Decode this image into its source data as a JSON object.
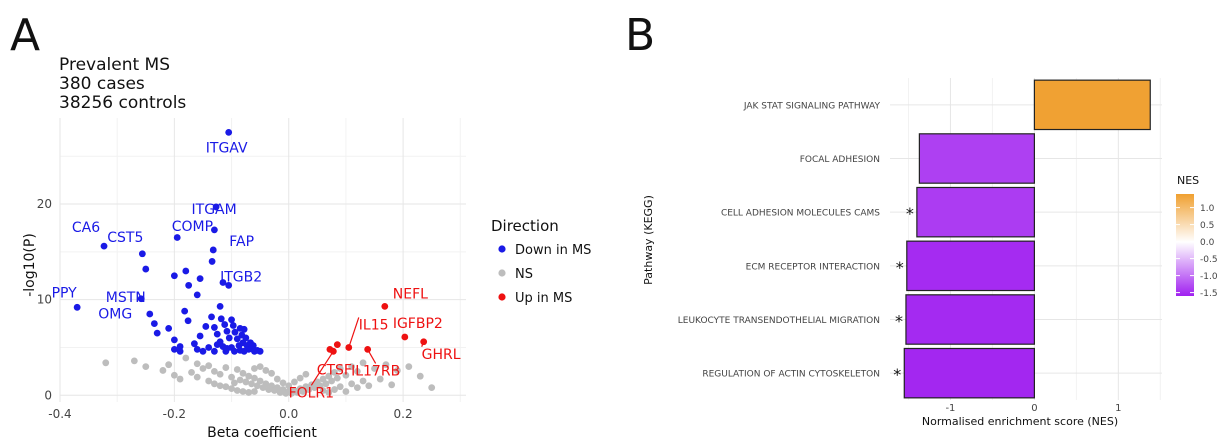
{
  "chart_data": [
    {
      "type": "scatter",
      "panel_label": "A",
      "title_lines": [
        "Prevalent MS",
        "380 cases",
        "38256 controls"
      ],
      "xlabel": "Beta coefficient",
      "ylabel": "-log10(P)",
      "xlim": [
        -0.4,
        0.31
      ],
      "ylim": [
        -0.7,
        29
      ],
      "xticks": [
        -0.4,
        -0.2,
        0.0,
        0.2
      ],
      "xtick_labels": [
        "-0.4",
        "-0.2",
        "0.0",
        "0.2"
      ],
      "yticks": [
        0,
        10,
        20
      ],
      "ytick_labels": [
        "0",
        "10",
        "20"
      ],
      "grid": true,
      "legend": {
        "title": "Direction",
        "position": "right",
        "entries": [
          {
            "label": "Down in MS",
            "color": "#1a1ae6"
          },
          {
            "label": "NS",
            "color": "#bdbdbd"
          },
          {
            "label": "Up in MS",
            "color": "#ee1111"
          }
        ]
      },
      "series": [
        {
          "name": "Down in MS",
          "color": "#1a1ae6",
          "points": [
            [
              -0.105,
              27.5
            ],
            [
              -0.127,
              19.7
            ],
            [
              -0.13,
              17.3
            ],
            [
              -0.132,
              15.2
            ],
            [
              -0.134,
              14.0
            ],
            [
              -0.323,
              15.6
            ],
            [
              -0.256,
              14.8
            ],
            [
              -0.25,
              13.2
            ],
            [
              -0.258,
              10.1
            ],
            [
              -0.37,
              9.2
            ],
            [
              -0.195,
              16.5
            ],
            [
              -0.2,
              12.5
            ],
            [
              -0.18,
              13.0
            ],
            [
              -0.175,
              11.5
            ],
            [
              -0.16,
              10.5
            ],
            [
              -0.155,
              12.2
            ],
            [
              -0.115,
              11.8
            ],
            [
              -0.105,
              11.5
            ],
            [
              -0.12,
              9.3
            ],
            [
              -0.182,
              8.8
            ],
            [
              -0.176,
              7.8
            ],
            [
              -0.243,
              8.5
            ],
            [
              -0.235,
              7.5
            ],
            [
              -0.23,
              6.5
            ],
            [
              -0.21,
              7.0
            ],
            [
              -0.2,
              5.8
            ],
            [
              -0.19,
              5.1
            ],
            [
              -0.165,
              5.4
            ],
            [
              -0.155,
              6.2
            ],
            [
              -0.145,
              7.2
            ],
            [
              -0.135,
              8.2
            ],
            [
              -0.13,
              7.1
            ],
            [
              -0.125,
              6.4
            ],
            [
              -0.12,
              5.6
            ],
            [
              -0.118,
              8.0
            ],
            [
              -0.112,
              7.4
            ],
            [
              -0.108,
              6.7
            ],
            [
              -0.104,
              6.0
            ],
            [
              -0.1,
              7.9
            ],
            [
              -0.097,
              7.3
            ],
            [
              -0.094,
              6.6
            ],
            [
              -0.09,
              5.9
            ],
            [
              -0.087,
              5.2
            ],
            [
              -0.085,
              7.0
            ],
            [
              -0.082,
              6.3
            ],
            [
              -0.08,
              5.5
            ],
            [
              -0.078,
              6.9
            ],
            [
              -0.075,
              6.0
            ],
            [
              -0.073,
              5.2
            ],
            [
              -0.07,
              4.8
            ],
            [
              -0.067,
              5.5
            ],
            [
              -0.065,
              4.9
            ],
            [
              -0.062,
              5.2
            ],
            [
              -0.06,
              4.6
            ],
            [
              -0.14,
              5.0
            ],
            [
              -0.15,
              4.6
            ],
            [
              -0.16,
              4.8
            ],
            [
              -0.19,
              4.6
            ],
            [
              -0.2,
              4.8
            ],
            [
              -0.11,
              4.6
            ],
            [
              -0.1,
              5.0
            ],
            [
              -0.095,
              4.6
            ],
            [
              -0.13,
              4.6
            ],
            [
              -0.125,
              5.3
            ],
            [
              -0.115,
              5.1
            ],
            [
              -0.108,
              4.9
            ],
            [
              -0.085,
              4.7
            ],
            [
              -0.078,
              4.6
            ],
            [
              -0.055,
              4.7
            ],
            [
              -0.05,
              4.6
            ]
          ]
        },
        {
          "name": "NS",
          "color": "#bdbdbd",
          "points": [
            [
              -0.32,
              3.4
            ],
            [
              -0.27,
              3.6
            ],
            [
              -0.25,
              3.0
            ],
            [
              -0.21,
              3.2
            ],
            [
              -0.18,
              3.9
            ],
            [
              -0.16,
              3.3
            ],
            [
              -0.15,
              2.8
            ],
            [
              -0.14,
              3.1
            ],
            [
              -0.13,
              2.5
            ],
            [
              -0.12,
              2.2
            ],
            [
              -0.11,
              2.9
            ],
            [
              -0.1,
              1.9
            ],
            [
              -0.09,
              2.7
            ],
            [
              -0.085,
              1.6
            ],
            [
              -0.08,
              2.3
            ],
            [
              -0.075,
              1.4
            ],
            [
              -0.07,
              2.0
            ],
            [
              -0.065,
              1.2
            ],
            [
              -0.06,
              1.8
            ],
            [
              -0.055,
              1.0
            ],
            [
              -0.05,
              1.5
            ],
            [
              -0.045,
              0.8
            ],
            [
              -0.04,
              1.2
            ],
            [
              -0.035,
              0.6
            ],
            [
              -0.03,
              1.0
            ],
            [
              -0.025,
              0.5
            ],
            [
              -0.02,
              0.8
            ],
            [
              -0.015,
              0.3
            ],
            [
              -0.01,
              0.6
            ],
            [
              -0.005,
              0.2
            ],
            [
              0.0,
              0.4
            ],
            [
              0.005,
              0.2
            ],
            [
              0.01,
              0.5
            ],
            [
              0.015,
              0.3
            ],
            [
              0.02,
              0.7
            ],
            [
              0.025,
              0.4
            ],
            [
              0.03,
              0.9
            ],
            [
              0.035,
              0.6
            ],
            [
              0.04,
              1.1
            ],
            [
              0.045,
              0.8
            ],
            [
              0.05,
              1.4
            ],
            [
              0.055,
              1.0
            ],
            [
              0.06,
              1.7
            ],
            [
              0.065,
              1.2
            ],
            [
              0.07,
              2.0
            ],
            [
              0.075,
              1.5
            ],
            [
              0.08,
              2.4
            ],
            [
              0.085,
              1.8
            ],
            [
              0.09,
              2.8
            ],
            [
              0.1,
              2.1
            ],
            [
              0.11,
              3.0
            ],
            [
              0.12,
              2.5
            ],
            [
              0.13,
              3.4
            ],
            [
              0.15,
              2.8
            ],
            [
              0.17,
              3.2
            ],
            [
              0.19,
              2.6
            ],
            [
              0.21,
              3.0
            ],
            [
              0.23,
              2.0
            ],
            [
              0.25,
              0.8
            ],
            [
              -0.22,
              2.6
            ],
            [
              -0.2,
              2.1
            ],
            [
              -0.19,
              1.7
            ],
            [
              -0.17,
              2.4
            ],
            [
              -0.16,
              1.9
            ],
            [
              -0.14,
              1.5
            ],
            [
              -0.13,
              1.2
            ],
            [
              -0.12,
              1.0
            ],
            [
              -0.11,
              0.9
            ],
            [
              -0.1,
              0.7
            ],
            [
              -0.095,
              1.3
            ],
            [
              -0.09,
              0.5
            ],
            [
              -0.08,
              0.4
            ],
            [
              -0.07,
              0.3
            ],
            [
              -0.06,
              0.4
            ],
            [
              0.06,
              0.5
            ],
            [
              0.07,
              0.3
            ],
            [
              0.08,
              0.6
            ],
            [
              0.09,
              0.9
            ],
            [
              0.1,
              0.4
            ],
            [
              0.11,
              1.2
            ],
            [
              0.12,
              0.8
            ],
            [
              0.13,
              1.5
            ],
            [
              0.14,
              1.0
            ],
            [
              0.16,
              1.7
            ],
            [
              0.18,
              1.1
            ],
            [
              -0.03,
              2.3
            ],
            [
              -0.02,
              1.7
            ],
            [
              -0.01,
              1.3
            ],
            [
              0.0,
              1.0
            ],
            [
              0.01,
              1.4
            ],
            [
              0.02,
              1.8
            ],
            [
              -0.04,
              2.6
            ],
            [
              -0.05,
              3.0
            ],
            [
              -0.06,
              2.8
            ],
            [
              0.03,
              2.2
            ]
          ]
        },
        {
          "name": "Up in MS",
          "color": "#ee1111",
          "points": [
            [
              0.168,
              9.3
            ],
            [
              0.203,
              6.1
            ],
            [
              0.236,
              5.6
            ],
            [
              0.105,
              5.0
            ],
            [
              0.078,
              4.6
            ],
            [
              0.072,
              4.8
            ],
            [
              0.085,
              5.3
            ],
            [
              0.138,
              4.8
            ]
          ]
        }
      ],
      "labels": [
        {
          "text": "ITGAV",
          "x": -0.105,
          "y": 27.5,
          "color": "#1a1ae6"
        },
        {
          "text": "ITGAM",
          "x": -0.127,
          "y": 19.7,
          "color": "#1a1ae6"
        },
        {
          "text": "COMP",
          "x": -0.13,
          "y": 17.3,
          "color": "#1a1ae6"
        },
        {
          "text": "FAP",
          "x": -0.132,
          "y": 15.2,
          "color": "#1a1ae6"
        },
        {
          "text": "CA6",
          "x": -0.323,
          "y": 15.6,
          "color": "#1a1ae6"
        },
        {
          "text": "CST5",
          "x": -0.256,
          "y": 14.8,
          "color": "#1a1ae6"
        },
        {
          "text": "ITGB2",
          "x": -0.134,
          "y": 14.0,
          "color": "#1a1ae6"
        },
        {
          "text": "MSTN",
          "x": -0.25,
          "y": 13.2,
          "color": "#1a1ae6"
        },
        {
          "text": "PPY",
          "x": -0.37,
          "y": 9.2,
          "color": "#1a1ae6"
        },
        {
          "text": "OMG",
          "x": -0.258,
          "y": 10.1,
          "color": "#1a1ae6"
        },
        {
          "text": "NEFL",
          "x": 0.168,
          "y": 9.3,
          "color": "#ee1111"
        },
        {
          "text": "IGFBP2",
          "x": 0.203,
          "y": 6.1,
          "color": "#ee1111"
        },
        {
          "text": "IL15",
          "x": 0.105,
          "y": 5.0,
          "color": "#ee1111"
        },
        {
          "text": "GHRL",
          "x": 0.236,
          "y": 5.6,
          "color": "#ee1111"
        },
        {
          "text": "CTSF",
          "x": 0.085,
          "y": 5.3,
          "color": "#ee1111"
        },
        {
          "text": "IL17RB",
          "x": 0.138,
          "y": 4.8,
          "color": "#ee1111"
        },
        {
          "text": "FOLR1",
          "x": 0.078,
          "y": 4.6,
          "color": "#ee1111"
        }
      ]
    },
    {
      "type": "bar",
      "orientation": "horizontal",
      "panel_label": "B",
      "xlabel": "Normalised enrichment score (NES)",
      "ylabel": "Pathway (KEGG)",
      "xlim": [
        -1.72,
        1.52
      ],
      "xticks": [
        -1,
        0,
        1
      ],
      "xtick_labels": [
        "-1",
        "0",
        "1"
      ],
      "grid": true,
      "categories": [
        "JAK STAT SIGNALING PATHWAY",
        "FOCAL ADHESION",
        "CELL ADHESION MOLECULES CAMS",
        "ECM RECEPTOR INTERACTION",
        "LEUKOCYTE TRANSENDOTHELIAL MIGRATION",
        "REGULATION OF ACTIN CYTOSKELETON"
      ],
      "values": [
        1.38,
        -1.37,
        -1.4,
        -1.52,
        -1.53,
        -1.55
      ],
      "significance": [
        "",
        "",
        "*",
        "*",
        "*",
        "*"
      ],
      "colorbar": {
        "title": "NES",
        "position": "right",
        "ticks": [
          1.0,
          0.5,
          0.0,
          -0.5,
          -1.0,
          -1.5
        ],
        "tick_labels": [
          "1.0",
          "0.5",
          "0.0",
          "-0.5",
          "-1.0",
          "-1.5"
        ],
        "range": [
          -1.6,
          1.4
        ],
        "low_color": "#a020f0",
        "mid_color": "#ffffff",
        "high_color": "#f0a030"
      }
    }
  ]
}
